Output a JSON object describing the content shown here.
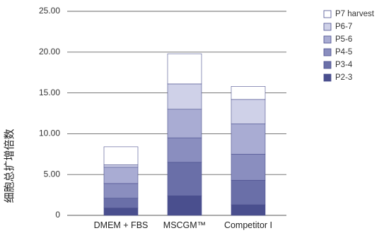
{
  "chart_data": {
    "type": "bar",
    "stacked": true,
    "title": "",
    "xlabel": "",
    "ylabel": "细胞总扩增倍数",
    "ylim": [
      0,
      25
    ],
    "yticks": [
      "0",
      "5.00",
      "10.00",
      "15.00",
      "20.00",
      "25.00"
    ],
    "grid": true,
    "legend_position": "right",
    "categories": [
      "DMEM + FBS",
      "MSCGM™",
      "Competitor I"
    ],
    "series": [
      {
        "name": "P2-3",
        "color": "#4a4f8e",
        "values": [
          0.9,
          2.4,
          1.3
        ]
      },
      {
        "name": "P3-4",
        "color": "#6a6fa8",
        "values": [
          1.2,
          4.1,
          3.0
        ]
      },
      {
        "name": "P4-5",
        "color": "#8a8ebf",
        "values": [
          1.8,
          3.0,
          3.2
        ]
      },
      {
        "name": "P5-6",
        "color": "#a9acd3",
        "values": [
          2.0,
          3.5,
          3.7
        ]
      },
      {
        "name": "P6-7",
        "color": "#cfd1e8",
        "values": [
          0.3,
          3.1,
          3.0
        ]
      },
      {
        "name": "P7 harvest",
        "color": "#ffffff",
        "values": [
          2.2,
          3.7,
          1.6
        ]
      }
    ]
  }
}
